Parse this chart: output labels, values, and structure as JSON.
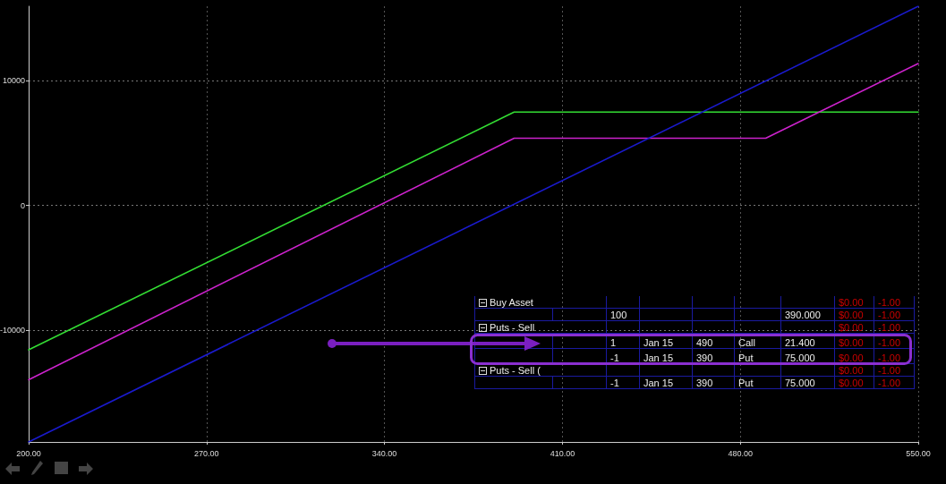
{
  "chart_data": [
    {
      "type": "line",
      "xlim": [
        200,
        550
      ],
      "ylim": [
        -19000,
        16000
      ],
      "xticks": [
        {
          "value": 200,
          "label": "200.00"
        },
        {
          "value": 270,
          "label": "270.00"
        },
        {
          "value": 340,
          "label": "340.00"
        },
        {
          "value": 410,
          "label": "410.00"
        },
        {
          "value": 480,
          "label": "480.00"
        },
        {
          "value": 550,
          "label": "550.00"
        }
      ],
      "yticks": [
        -10000,
        0,
        10000
      ],
      "grid": true,
      "marker": "none",
      "line_style": "solid",
      "series": [
        {
          "color": "#33dd33",
          "x": [
            200,
            391,
            550
          ],
          "values": [
            -11600,
            7500,
            7500
          ]
        },
        {
          "color": "#cc22cc",
          "x": [
            200,
            391,
            490,
            550
          ],
          "values": [
            -14000,
            5400,
            5400,
            11400
          ]
        },
        {
          "color": "#1a1acc",
          "x": [
            200,
            550
          ],
          "values": [
            -19000,
            16000
          ]
        }
      ]
    },
    {
      "type": "other",
      "annotations": [
        "Buy Asset",
        "$0.00",
        "-1.00",
        "100",
        "390.000",
        "$0.00",
        "-1.00",
        "Puts - Sell",
        "$0.00",
        "-1.00",
        "1",
        "Jan 15",
        "490",
        "Call",
        "21.400",
        "$0.00",
        "-1.00",
        "-1",
        "Jan 15",
        "390",
        "Put",
        "75.000",
        "$0.00",
        "-1.00",
        "Puts - Sell (",
        "$0.00",
        "-1.00",
        "-1",
        "Jan 15",
        "390",
        "Put",
        "75.000",
        "$0.00",
        "-1.00"
      ]
    }
  ]
}
